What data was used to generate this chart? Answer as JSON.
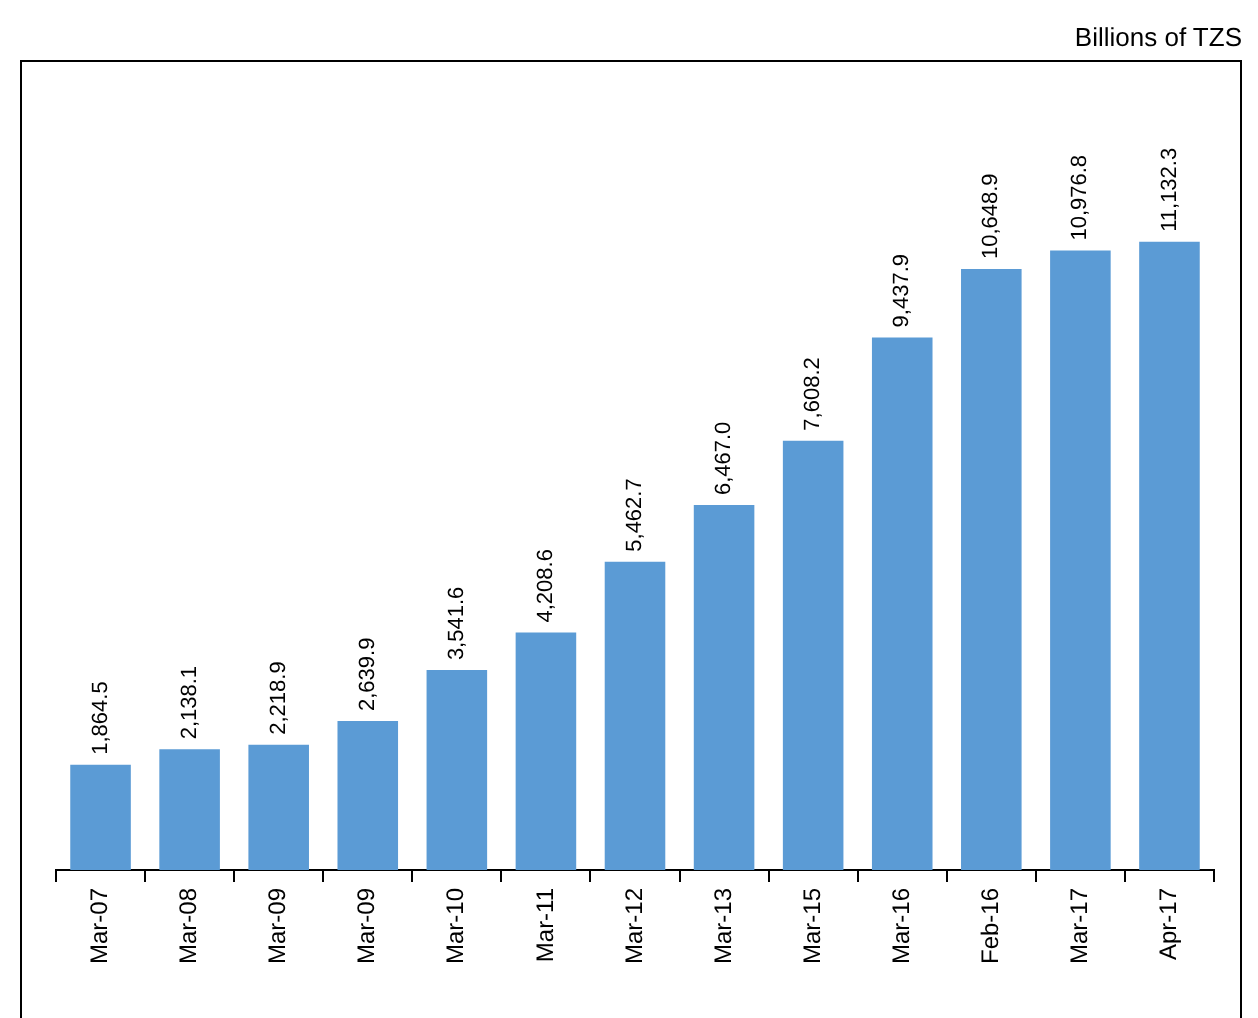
{
  "chart_data": {
    "type": "bar",
    "annotations": [
      "Billions of TZS"
    ],
    "categories": [
      "Mar-07",
      "Mar-08",
      "Mar-09",
      "Mar-09",
      "Mar-10",
      "Mar-11",
      "Mar-12",
      "Mar-13",
      "Mar-15",
      "Mar-16",
      "Feb-16",
      "Mar-17",
      "Apr-17"
    ],
    "values": [
      1864.5,
      2138.1,
      2218.9,
      2639.9,
      3541.6,
      4208.6,
      5462.7,
      6467.0,
      7608.2,
      9437.9,
      10648.9,
      10976.8,
      11132.3
    ],
    "value_labels": [
      "1,864.5",
      "2,138.1",
      "2,218.9",
      "2,639.9",
      "3,541.6",
      "4,208.6",
      "5,462.7",
      "6,467.0",
      "7,608.2",
      "9,437.9",
      "10,648.9",
      "10,976.8",
      "11,132.3"
    ],
    "color": "#5b9bd5",
    "tick_labels": "x",
    "grid": false,
    "legend": false
  }
}
